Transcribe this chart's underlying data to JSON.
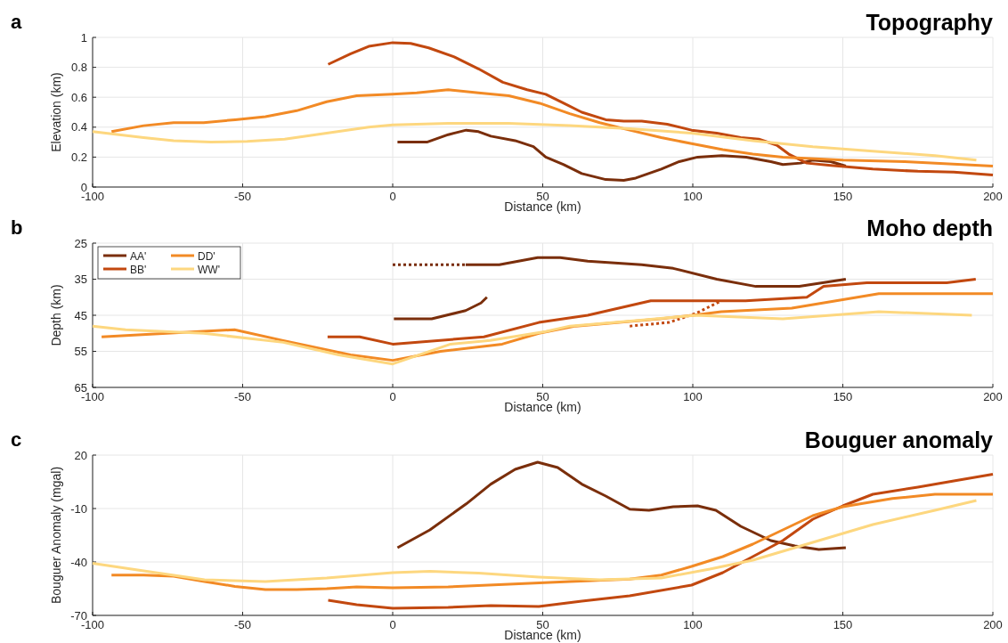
{
  "chart_data": [
    {
      "type": "line",
      "title": "Topography",
      "annotations": [
        "a"
      ],
      "xlabel": "Distance (km)",
      "ylabel": "Elevation (km)",
      "xlim": [
        -100,
        200
      ],
      "xticks": [
        -100,
        -50,
        0,
        50,
        100,
        150,
        200
      ],
      "ylim": [
        0,
        1
      ],
      "yticks": [
        0,
        0.2,
        0.4,
        0.6,
        0.8,
        1
      ],
      "grid": true,
      "legend": false,
      "line_style": "solid",
      "series": [
        {
          "color": "#7a2e0b",
          "x": [
            1.6,
            11.4,
            18.5,
            24.5,
            28.6,
            32.7,
            40.8,
            46.9,
            51,
            57,
            63,
            71,
            77,
            81,
            89.5,
            95.5,
            101.6,
            109.7,
            117.8,
            126,
            130,
            136,
            140,
            146,
            151
          ],
          "values": [
            0.3,
            0.3,
            0.35,
            0.38,
            0.37,
            0.34,
            0.31,
            0.27,
            0.2,
            0.15,
            0.09,
            0.05,
            0.045,
            0.06,
            0.12,
            0.17,
            0.2,
            0.21,
            0.2,
            0.17,
            0.15,
            0.16,
            0.18,
            0.17,
            0.14
          ]
        },
        {
          "color": "#c2480f",
          "x": [
            -21.5,
            -14,
            -8,
            0,
            6,
            12,
            20.5,
            28.6,
            36.7,
            44.8,
            51,
            57,
            63,
            71,
            77,
            83,
            91.5,
            99.6,
            108,
            116,
            122,
            128,
            132,
            138,
            146,
            160,
            175,
            187,
            200
          ],
          "values": [
            0.82,
            0.89,
            0.94,
            0.965,
            0.96,
            0.93,
            0.87,
            0.79,
            0.7,
            0.65,
            0.62,
            0.56,
            0.5,
            0.45,
            0.44,
            0.44,
            0.42,
            0.38,
            0.36,
            0.33,
            0.32,
            0.28,
            0.22,
            0.16,
            0.145,
            0.12,
            0.105,
            0.1,
            0.08
          ]
        },
        {
          "color": "#f28a25",
          "x": [
            -93.7,
            -83,
            -73,
            -63,
            -52.5,
            -42.4,
            -32,
            -22,
            -12,
            0,
            8,
            18.5,
            28.6,
            38.7,
            49,
            59,
            69,
            79,
            89.5,
            99.6,
            110,
            120,
            130,
            150,
            170.6,
            200
          ],
          "values": [
            0.37,
            0.41,
            0.43,
            0.43,
            0.45,
            0.47,
            0.51,
            0.57,
            0.61,
            0.62,
            0.63,
            0.65,
            0.63,
            0.61,
            0.56,
            0.49,
            0.43,
            0.38,
            0.33,
            0.29,
            0.25,
            0.22,
            0.2,
            0.18,
            0.17,
            0.14
          ]
        },
        {
          "color": "#fdd77f",
          "x": [
            -100,
            -83,
            -73,
            -60.6,
            -48.5,
            -36,
            -22,
            -8,
            0,
            18.5,
            38.7,
            59,
            79,
            99.6,
            120,
            140,
            160,
            180.7,
            194.5
          ],
          "values": [
            0.37,
            0.33,
            0.31,
            0.3,
            0.305,
            0.32,
            0.36,
            0.4,
            0.415,
            0.425,
            0.425,
            0.41,
            0.39,
            0.36,
            0.31,
            0.27,
            0.24,
            0.21,
            0.18
          ]
        }
      ]
    },
    {
      "type": "line",
      "title": "Moho depth",
      "annotations": [
        "b"
      ],
      "xlabel": "Distance (km)",
      "ylabel": "Depth (km)",
      "xlim": [
        -100,
        200
      ],
      "xticks": [
        -100,
        -50,
        0,
        50,
        100,
        150,
        200
      ],
      "ylim": [
        65,
        25
      ],
      "yticks": [
        25,
        35,
        45,
        55,
        65
      ],
      "grid": true,
      "legend": "top left",
      "line_style": "solid",
      "series": [
        {
          "name": "AA'",
          "color": "#7a2e0b",
          "x": [
            24.3,
            35.5,
            48.3,
            55.8,
            65,
            83,
            93.5,
            108,
            121,
            135.5,
            151
          ],
          "values": [
            31,
            31,
            29,
            29,
            30,
            31,
            32,
            35,
            37,
            37,
            35
          ]
        },
        {
          "color": "#7a2e0b",
          "x": [
            0.4,
            13,
            24.3,
            29.4,
            31.4
          ],
          "values": [
            46,
            46,
            43.7,
            41.6,
            40
          ]
        },
        {
          "color": "#7a2e0b",
          "line_style": "dotted",
          "x": [
            0,
            24.3
          ],
          "values": [
            31,
            31
          ]
        },
        {
          "name": "BB'",
          "color": "#c2480f",
          "x": [
            -21.7,
            -11,
            0,
            30.4,
            48.7,
            65,
            86,
            117.6,
            138,
            143.6,
            158,
            184.6,
            194.3
          ],
          "values": [
            51,
            51,
            53,
            51,
            47,
            45,
            41,
            41,
            40,
            37,
            36,
            36,
            35
          ]
        },
        {
          "color": "#c2480f",
          "line_style": "dotted",
          "x": [
            79,
            92,
            101,
            109.5
          ],
          "values": [
            48,
            47,
            44.5,
            41
          ]
        },
        {
          "name": "DD'",
          "color": "#f28a25",
          "x": [
            -97,
            -52.7,
            -36.5,
            -14,
            0,
            16,
            36.5,
            48.7,
            61,
            89,
            100,
            109.5,
            133,
            162,
            200
          ],
          "values": [
            51,
            49,
            52,
            56,
            57.5,
            55,
            53,
            50,
            48,
            46,
            45,
            44,
            43,
            39,
            39
          ]
        },
        {
          "name": "WW'",
          "color": "#fdd77f",
          "x": [
            -100,
            -89,
            -63,
            -36.5,
            -18,
            0,
            19.3,
            32.5,
            51,
            59,
            81,
            101,
            130,
            162,
            193
          ],
          "values": [
            48,
            49,
            50,
            52.5,
            56,
            58.5,
            53,
            52,
            49.5,
            48,
            46.5,
            45,
            46,
            44,
            45
          ]
        }
      ]
    },
    {
      "type": "line",
      "title": "Bouguer anomaly",
      "annotations": [
        "c"
      ],
      "xlabel": "Distance (km)",
      "ylabel": "Bouguer Anomaly (mgal)",
      "xlim": [
        -100,
        200
      ],
      "xticks": [
        -100,
        -50,
        0,
        50,
        100,
        150,
        200
      ],
      "ylim": [
        -70,
        20
      ],
      "yticks": [
        -70,
        -40,
        -10,
        20
      ],
      "grid": true,
      "legend": false,
      "line_style": "solid",
      "series": [
        {
          "color": "#7a2e0b",
          "x": [
            1.6,
            12.4,
            24.5,
            32.7,
            40.8,
            48.3,
            55,
            63,
            71,
            79,
            85.4,
            93.5,
            101.6,
            107.7,
            116,
            126,
            134,
            142,
            151
          ],
          "values": [
            -32,
            -22,
            -7.4,
            3.7,
            12,
            16,
            13,
            3.7,
            -3,
            -10.4,
            -11,
            -9,
            -8.5,
            -11,
            -20,
            -28,
            -31,
            -33,
            -32
          ]
        },
        {
          "color": "#c2480f",
          "x": [
            -21.5,
            -12,
            0,
            18.5,
            32.7,
            48.7,
            63,
            79,
            99.6,
            110,
            120,
            130,
            140,
            150,
            160,
            175,
            187,
            200
          ],
          "values": [
            -61.5,
            -64,
            -66,
            -65.5,
            -64.5,
            -65,
            -62,
            -59,
            -53,
            -46,
            -37,
            -28,
            -16,
            -8.5,
            -2,
            2,
            5.5,
            9.3
          ]
        },
        {
          "color": "#f28a25",
          "x": [
            -93.7,
            -83,
            -73,
            -62.7,
            -52.6,
            -42.4,
            -32,
            -22,
            -12,
            0,
            18.5,
            38.7,
            59,
            79,
            89.5,
            99.6,
            110,
            120,
            130,
            140,
            150,
            166.5,
            180.7,
            200
          ],
          "values": [
            -47.4,
            -47.4,
            -48,
            -51,
            -53.7,
            -55.5,
            -55.5,
            -55,
            -54,
            -54.5,
            -54,
            -52.5,
            -51,
            -49.6,
            -47.4,
            -42.5,
            -37,
            -30,
            -22,
            -14,
            -9,
            -4.4,
            -2,
            -2
          ]
        },
        {
          "color": "#fdd77f",
          "x": [
            -100,
            -83,
            -62.7,
            -42.4,
            -22,
            0,
            12.4,
            28.6,
            48.7,
            69,
            89.5,
            105.7,
            120,
            140,
            160,
            180.7,
            194.5
          ],
          "values": [
            -40.7,
            -45,
            -50,
            -51,
            -49,
            -46,
            -45.3,
            -46.3,
            -48.5,
            -50,
            -49,
            -44,
            -39,
            -29,
            -19,
            -11,
            -5.5
          ]
        }
      ]
    }
  ]
}
